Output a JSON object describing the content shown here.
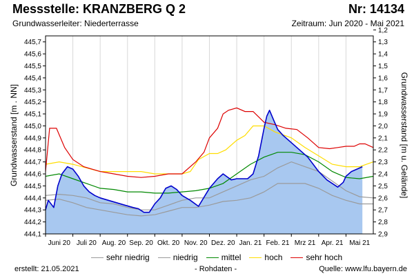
{
  "header": {
    "title": "Messstelle: KRANZBERG Q 2",
    "station_number": "Nr: 14134",
    "aquifer": "Grundwasserleiter:   Niederterrasse",
    "period": "Zeitraum: Jun 2020 - Mai 2021"
  },
  "footer": {
    "created": "erstellt:  21.05.2021",
    "data_type": "- Rohdaten -",
    "source": "Quelle: www.lfu.bayern.de"
  },
  "chart_data": {
    "type": "area",
    "ylabel": "Grundwasserstand [m . NN]",
    "y2label": "Grundwasserstand [m u. Gelände]",
    "ylim": [
      444.1,
      445.75
    ],
    "y2lim": [
      2.9,
      1.25
    ],
    "y_ticks": [
      "444,1",
      "444,2",
      "444,3",
      "444,4",
      "444,5",
      "444,6",
      "444,7",
      "444,8",
      "444,9",
      "445,0",
      "445,1",
      "445,2",
      "445,3",
      "445,4",
      "445,5",
      "445,6",
      "445,7"
    ],
    "y2_ticks": [
      "1,2",
      "1,3",
      "1,4",
      "1,5",
      "1,6",
      "1,7",
      "1,8",
      "1,9",
      "2,0",
      "2,1",
      "2,2",
      "2,3",
      "2,4",
      "2,5",
      "2,6",
      "2,7",
      "2,8",
      "2,9"
    ],
    "x_ticks": [
      "Juni 20",
      "Juli 20",
      "Aug. 20",
      "Sep. 20",
      "Okt. 20",
      "Nov. 20",
      "Dez. 20",
      "Jan. 21",
      "Feb. 21",
      "Mrz 21",
      "Apr. 21",
      "Mai 21"
    ],
    "x_range": [
      0,
      12
    ],
    "grid": "vertical month lines",
    "colors": {
      "measured_line": "#0000cc",
      "measured_fill": "#a8c8f0",
      "sehr_niedrig": "#9a9a9a",
      "niedrig": "#9a9a9a",
      "mittel": "#008800",
      "hoch": "#ffdd00",
      "sehr_hoch": "#dd0000"
    },
    "legend": {
      "position": "bottom",
      "items": [
        {
          "key": "sehr_niedrig",
          "label": "sehr niedrig"
        },
        {
          "key": "niedrig",
          "label": "niedrig"
        },
        {
          "key": "mittel",
          "label": "mittel"
        },
        {
          "key": "hoch",
          "label": "hoch"
        },
        {
          "key": "sehr_hoch",
          "label": "sehr hoch"
        }
      ]
    },
    "series": [
      {
        "key": "measured",
        "x": [
          0,
          0.1,
          0.3,
          0.45,
          0.6,
          0.8,
          1,
          1.2,
          1.4,
          1.6,
          1.8,
          2,
          2.3,
          2.6,
          2.9,
          3.2,
          3.4,
          3.6,
          3.8,
          4,
          4.2,
          4.4,
          4.6,
          4.8,
          5,
          5.3,
          5.6,
          6,
          6.3,
          6.5,
          6.8,
          7,
          7.2,
          7.4,
          7.6,
          7.8,
          8,
          8.1,
          8.2,
          8.35,
          8.5,
          8.7,
          9,
          9.3,
          9.6,
          9.8,
          10,
          10.3,
          10.5,
          10.7,
          10.9,
          11,
          11.2,
          11.4,
          11.6
        ],
        "values": [
          444.3,
          444.38,
          444.32,
          444.5,
          444.6,
          444.66,
          444.64,
          444.58,
          444.5,
          444.45,
          444.42,
          444.4,
          444.38,
          444.36,
          444.34,
          444.32,
          444.31,
          444.28,
          444.28,
          444.35,
          444.4,
          444.48,
          444.5,
          444.47,
          444.42,
          444.38,
          444.33,
          444.48,
          444.56,
          444.6,
          444.55,
          444.56,
          444.56,
          444.56,
          444.6,
          444.75,
          444.98,
          445.08,
          445.13,
          445.05,
          444.97,
          444.92,
          444.86,
          444.8,
          444.74,
          444.68,
          444.62,
          444.55,
          444.52,
          444.49,
          444.53,
          444.58,
          444.62,
          444.64,
          444.66
        ]
      },
      {
        "key": "sehr_niedrig",
        "x": [
          0,
          0.5,
          1,
          1.5,
          2,
          2.5,
          3,
          3.5,
          4,
          4.5,
          5,
          5.5,
          6,
          6.5,
          7,
          7.5,
          8,
          8.5,
          9,
          9.5,
          10,
          10.5,
          11,
          11.5,
          12
        ],
        "values": [
          444.38,
          444.39,
          444.36,
          444.32,
          444.3,
          444.28,
          444.26,
          444.25,
          444.26,
          444.29,
          444.32,
          444.32,
          444.34,
          444.37,
          444.38,
          444.4,
          444.45,
          444.52,
          444.52,
          444.52,
          444.48,
          444.42,
          444.38,
          444.35,
          444.35
        ]
      },
      {
        "key": "niedrig",
        "x": [
          0,
          0.5,
          1,
          1.5,
          2,
          2.5,
          3,
          3.5,
          4,
          4.5,
          5,
          5.5,
          6,
          6.5,
          7,
          7.5,
          8,
          8.5,
          9,
          9.5,
          10,
          10.5,
          11,
          11.5,
          12
        ],
        "values": [
          444.42,
          444.43,
          444.42,
          444.4,
          444.36,
          444.35,
          444.32,
          444.3,
          444.3,
          444.34,
          444.38,
          444.4,
          444.4,
          444.45,
          444.5,
          444.55,
          444.58,
          444.65,
          444.7,
          444.66,
          444.62,
          444.54,
          444.46,
          444.41,
          444.4
        ]
      },
      {
        "key": "mittel",
        "x": [
          0,
          0.5,
          1,
          1.5,
          2,
          2.5,
          3,
          3.5,
          4,
          4.5,
          5,
          5.5,
          6,
          6.5,
          7,
          7.5,
          8,
          8.5,
          9,
          9.5,
          10,
          10.5,
          11,
          11.5,
          12
        ],
        "values": [
          444.58,
          444.6,
          444.56,
          444.52,
          444.48,
          444.47,
          444.45,
          444.45,
          444.44,
          444.44,
          444.45,
          444.46,
          444.48,
          444.52,
          444.6,
          444.68,
          444.74,
          444.78,
          444.78,
          444.76,
          444.7,
          444.62,
          444.57,
          444.56,
          444.58
        ]
      },
      {
        "key": "hoch",
        "x": [
          0,
          0.5,
          1,
          1.5,
          2,
          2.5,
          3,
          3.5,
          4,
          4.5,
          5,
          5.3,
          5.6,
          6,
          6.3,
          6.6,
          7,
          7.3,
          7.6,
          8,
          8.4,
          9,
          9.5,
          10,
          10.5,
          11,
          11.5,
          12
        ],
        "values": [
          444.68,
          444.7,
          444.68,
          444.65,
          444.62,
          444.62,
          444.62,
          444.62,
          444.6,
          444.6,
          444.6,
          444.62,
          444.72,
          444.77,
          444.77,
          444.8,
          444.88,
          444.92,
          445.0,
          445.0,
          444.95,
          444.9,
          444.82,
          444.75,
          444.68,
          444.66,
          444.66,
          444.7
        ]
      },
      {
        "key": "sehr_hoch",
        "x": [
          0,
          0.15,
          0.4,
          0.7,
          1,
          1.4,
          2,
          2.5,
          3,
          3.5,
          4,
          4.5,
          5,
          5.5,
          5.8,
          6,
          6.3,
          6.5,
          6.7,
          7,
          7.3,
          7.6,
          8,
          8.4,
          8.8,
          9.2,
          9.6,
          10,
          10.4,
          10.7,
          11,
          11.3,
          11.5,
          11.7,
          12
        ],
        "values": [
          444.62,
          444.98,
          444.98,
          444.82,
          444.72,
          444.66,
          444.62,
          444.6,
          444.58,
          444.57,
          444.58,
          444.6,
          444.6,
          444.7,
          444.78,
          444.9,
          444.98,
          445.1,
          445.13,
          445.15,
          445.12,
          445.12,
          445.03,
          445.01,
          444.98,
          444.97,
          444.9,
          444.82,
          444.81,
          444.82,
          444.83,
          444.83,
          444.85,
          444.85,
          444.82
        ]
      }
    ]
  }
}
